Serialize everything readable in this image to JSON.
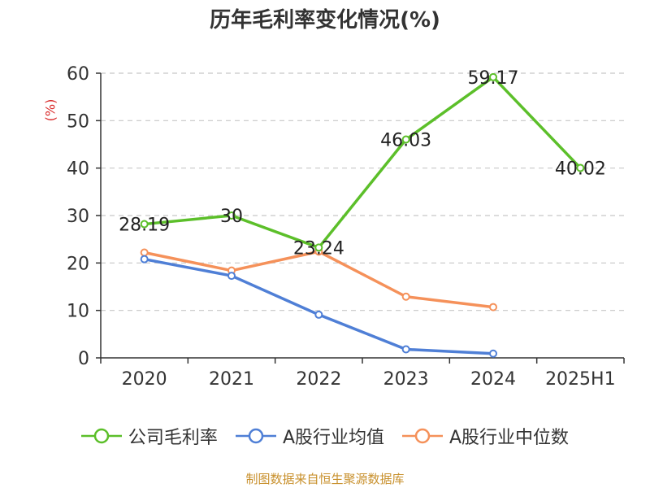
{
  "chart_data": {
    "type": "line",
    "title": "历年毛利率变化情况(%)",
    "ylabel": "(%)",
    "xlabel": "",
    "categories": [
      "2020",
      "2021",
      "2022",
      "2023",
      "2024",
      "2025H1"
    ],
    "ylim": [
      0,
      60
    ],
    "yticks": [
      0,
      10,
      20,
      30,
      40,
      50,
      60
    ],
    "grid": true,
    "legend_position": "bottom",
    "series": [
      {
        "name": "公司毛利率",
        "color": "#5cbf2a",
        "values": [
          28.19,
          30,
          23.24,
          46.03,
          59.17,
          40.02
        ],
        "data_labels": [
          "28.19",
          "30",
          "23.24",
          "46.03",
          "59.17",
          "40.02"
        ]
      },
      {
        "name": "A股行业均值",
        "color": "#4f7fd6",
        "values": [
          20.8,
          17.3,
          9.1,
          1.8,
          0.9,
          null
        ]
      },
      {
        "name": "A股行业中位数",
        "color": "#f5915a",
        "values": [
          22.2,
          18.4,
          22.4,
          12.9,
          10.7,
          null
        ]
      }
    ]
  },
  "source": "制图数据来自恒生聚源数据库"
}
